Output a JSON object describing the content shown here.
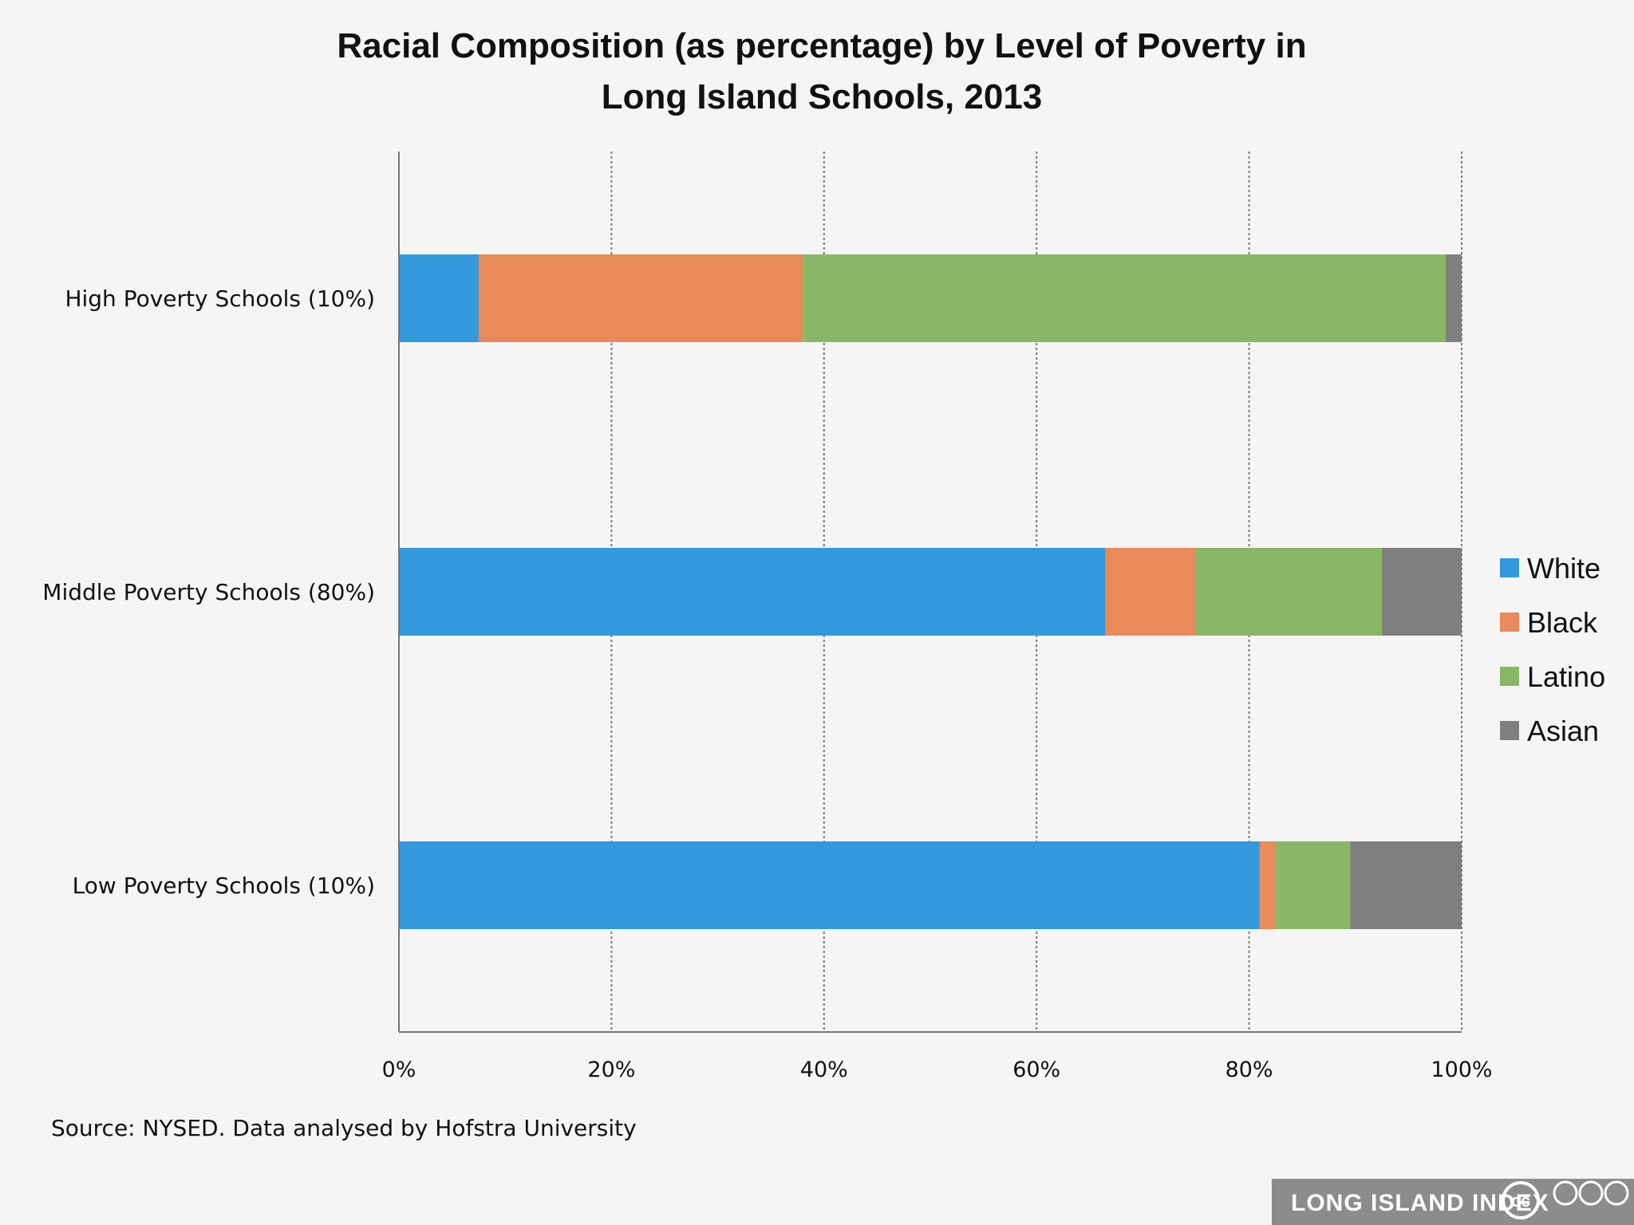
{
  "chart_data": {
    "type": "bar",
    "orientation": "horizontal",
    "stacked": true,
    "title_lines": [
      "Racial Composition (as percentage) by Level of Poverty in",
      "Long Island Schools, 2013"
    ],
    "categories": [
      "High Poverty Schools (10%)",
      "Middle Poverty Schools (80%)",
      "Low Poverty Schools (10%)"
    ],
    "series": [
      {
        "name": "White",
        "color": "#3399dd",
        "values": [
          7.5,
          66.5,
          81
        ]
      },
      {
        "name": "Black",
        "color": "#e88a5a",
        "values": [
          30.5,
          8.5,
          1.5
        ]
      },
      {
        "name": "Latino",
        "color": "#88b866",
        "values": [
          60.5,
          17.5,
          7
        ]
      },
      {
        "name": "Asian",
        "color": "#7f7f7f",
        "values": [
          1.5,
          7.5,
          10.5
        ]
      }
    ],
    "x_ticks": [
      "0%",
      "20%",
      "40%",
      "60%",
      "80%",
      "100%"
    ],
    "xlim": [
      0,
      100
    ],
    "grid": true,
    "legend_position": "right"
  },
  "source": "Source:  NYSED. Data analysed by Hofstra University",
  "logo": {
    "text": "LONG ISLAND INDEX",
    "cc": "cc"
  }
}
